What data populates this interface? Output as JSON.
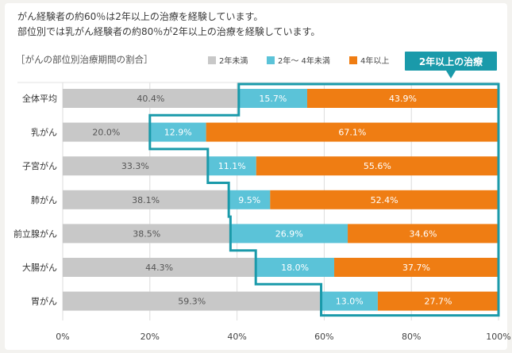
{
  "header": {
    "line1": "がん経験者の約60％は2年以上の治療を経験しています。",
    "line2": "部位別では乳がん経験者の約80％が2年以上の治療を経験しています。"
  },
  "chart_data": {
    "type": "bar",
    "orientation": "horizontal",
    "stacked": true,
    "title": "［がんの部位別治療期間の割合］",
    "callout": "2年以上の治療",
    "categories": [
      "全体平均",
      "乳がん",
      "子宮がん",
      "肺がん",
      "前立腺がん",
      "大腸がん",
      "胃がん"
    ],
    "series": [
      {
        "name": "2年未満",
        "color": "#c8c8c8",
        "values": [
          40.4,
          20.0,
          33.3,
          38.1,
          38.5,
          44.3,
          59.3
        ]
      },
      {
        "name": "2年～ 4年未満",
        "color": "#5bc3d8",
        "values": [
          15.7,
          12.9,
          11.1,
          9.5,
          26.9,
          18.0,
          13.0
        ]
      },
      {
        "name": "4年以上",
        "color": "#ef7d13",
        "values": [
          43.9,
          67.1,
          55.6,
          52.4,
          34.6,
          37.7,
          27.7
        ]
      }
    ],
    "value_labels": [
      [
        "40.4%",
        "15.7%",
        "43.9%"
      ],
      [
        "20.0%",
        "12.9%",
        "67.1%"
      ],
      [
        "33.3%",
        "11.1%",
        "55.6%"
      ],
      [
        "38.1%",
        "9.5%",
        "52.4%"
      ],
      [
        "38.5%",
        "26.9%",
        "34.6%"
      ],
      [
        "44.3%",
        "18.0%",
        "37.7%"
      ],
      [
        "59.3%",
        "13.0%",
        "27.7%"
      ]
    ],
    "x_ticks": [
      "0%",
      "20%",
      "40%",
      "60%",
      "80%",
      "100%"
    ],
    "xlim": [
      0,
      100
    ],
    "grid": true,
    "legend_position": "top-right",
    "highlight_color": "#1a9aaa"
  }
}
